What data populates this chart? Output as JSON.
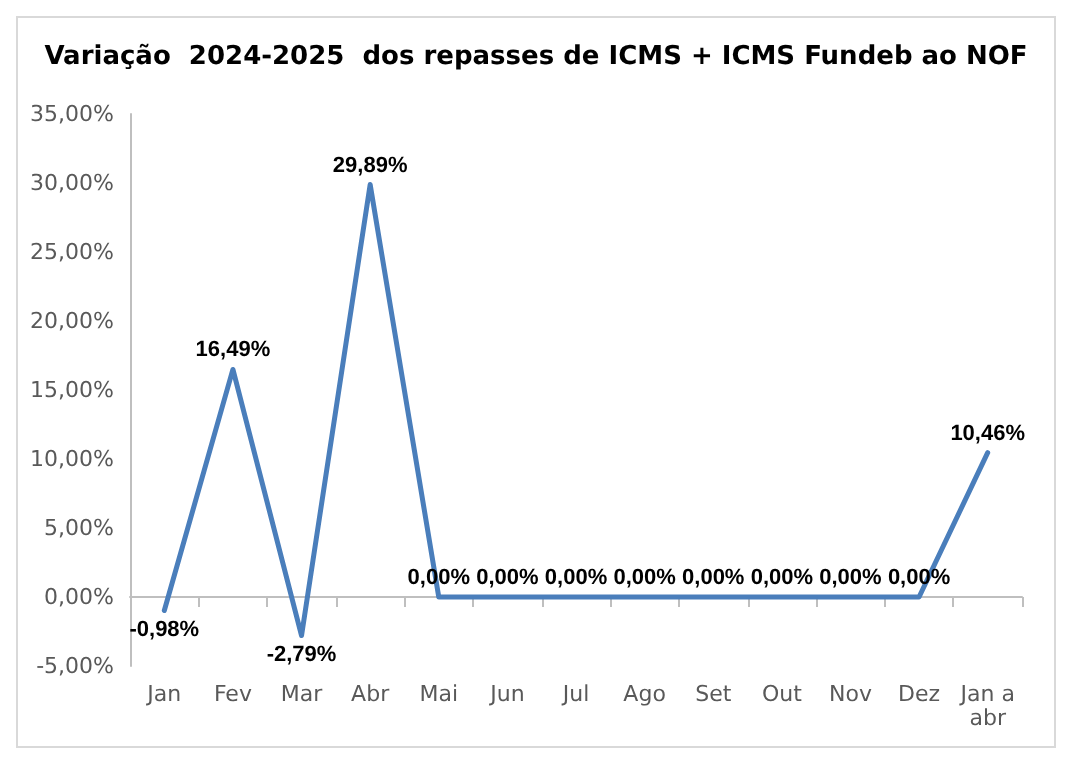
{
  "chart_data": {
    "type": "line",
    "title": "Variação  2024-2025  dos repasses de ICMS + ICMS Fundeb ao NOF",
    "categories": [
      "Jan",
      "Fev",
      "Mar",
      "Abr",
      "Mai",
      "Jun",
      "Jul",
      "Ago",
      "Set",
      "Out",
      "Nov",
      "Dez",
      "Jan a\nabr"
    ],
    "series": [
      {
        "color": "#4a7ebb",
        "values": [
          -0.98,
          16.49,
          -2.79,
          29.89,
          0,
          0,
          0,
          0,
          0,
          0,
          0,
          0,
          10.46
        ],
        "value_labels": [
          "-0,98%",
          "16,49%",
          "-2,79%",
          "29,89%",
          "0,00%",
          "0,00%",
          "0,00%",
          "0,00%",
          "0,00%",
          "0,00%",
          "0,00%",
          "0,00%",
          "10,46%"
        ]
      }
    ],
    "ylim": [
      -5,
      35
    ],
    "yticks": [
      {
        "value": -5,
        "label": "-5,00%"
      },
      {
        "value": 0,
        "label": "0,00%"
      },
      {
        "value": 5,
        "label": "5,00%"
      },
      {
        "value": 10,
        "label": "10,00%"
      },
      {
        "value": 15,
        "label": "15,00%"
      },
      {
        "value": 20,
        "label": "20,00%"
      },
      {
        "value": 25,
        "label": "25,00%"
      },
      {
        "value": 30,
        "label": "30,00%"
      },
      {
        "value": 35,
        "label": "35,00%"
      }
    ],
    "marker": "none",
    "line_style": "solid"
  }
}
